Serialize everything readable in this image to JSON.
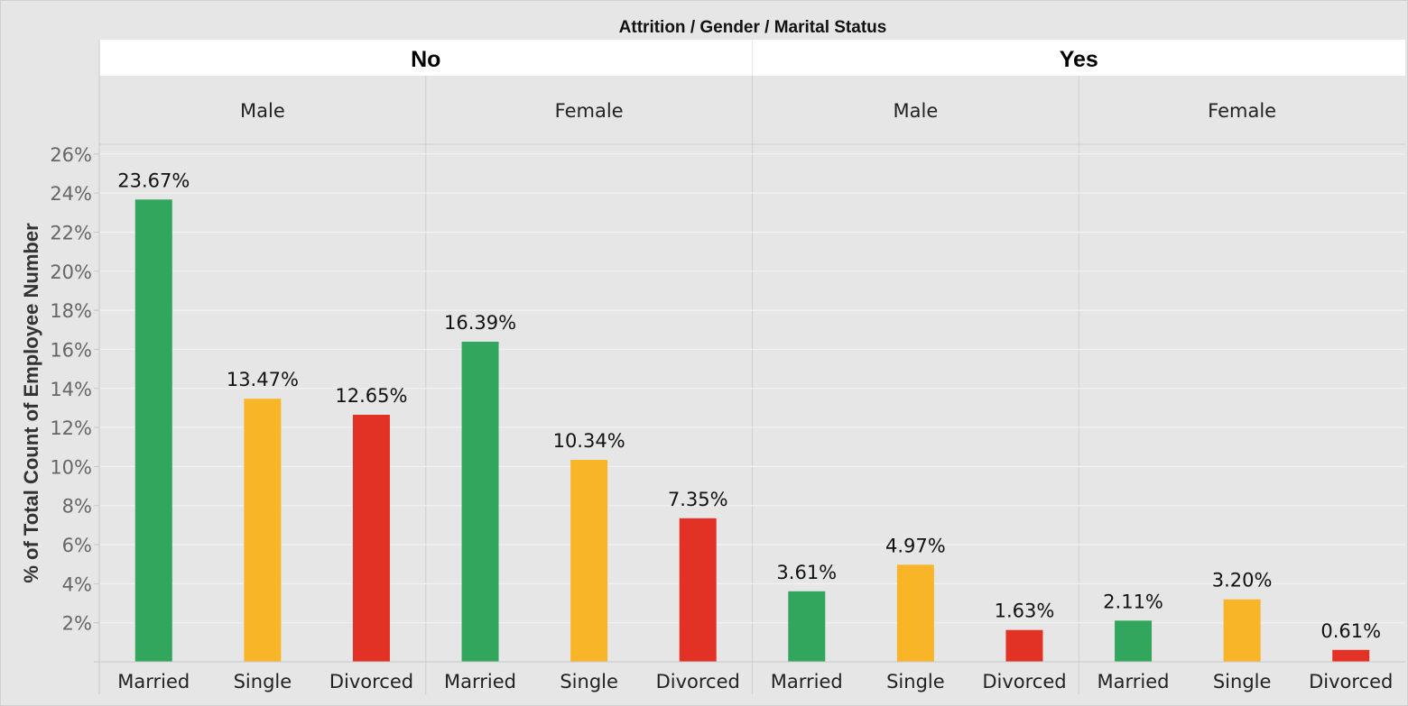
{
  "chart_data": {
    "type": "bar",
    "title": "Attrition / Gender / Marital Status",
    "ylabel": "% of Total Count of Employee Number",
    "ylim": [
      0,
      26.5
    ],
    "yticks": [
      2,
      4,
      6,
      8,
      10,
      12,
      14,
      16,
      18,
      20,
      22,
      24,
      26
    ],
    "ytick_labels": [
      "2%",
      "4%",
      "6%",
      "8%",
      "10%",
      "12%",
      "14%",
      "16%",
      "18%",
      "20%",
      "22%",
      "24%",
      "26%"
    ],
    "grid": true,
    "categories": [
      "Married",
      "Single",
      "Divorced"
    ],
    "category_colors": {
      "Married": "#33a65d",
      "Single": "#f7b527",
      "Divorced": "#e23226"
    },
    "attrition_groups": [
      {
        "label": "No",
        "genders": [
          {
            "label": "Male",
            "values": [
              23.67,
              13.47,
              12.65
            ],
            "value_labels": [
              "23.67%",
              "13.47%",
              "12.65%"
            ]
          },
          {
            "label": "Female",
            "values": [
              16.39,
              10.34,
              7.35
            ],
            "value_labels": [
              "16.39%",
              "10.34%",
              "7.35%"
            ]
          }
        ]
      },
      {
        "label": "Yes",
        "genders": [
          {
            "label": "Male",
            "values": [
              3.61,
              4.97,
              1.63
            ],
            "value_labels": [
              "3.61%",
              "4.97%",
              "1.63%"
            ]
          },
          {
            "label": "Female",
            "values": [
              2.11,
              3.2,
              0.61
            ],
            "value_labels": [
              "2.11%",
              "3.20%",
              "0.61%"
            ]
          }
        ]
      }
    ]
  }
}
